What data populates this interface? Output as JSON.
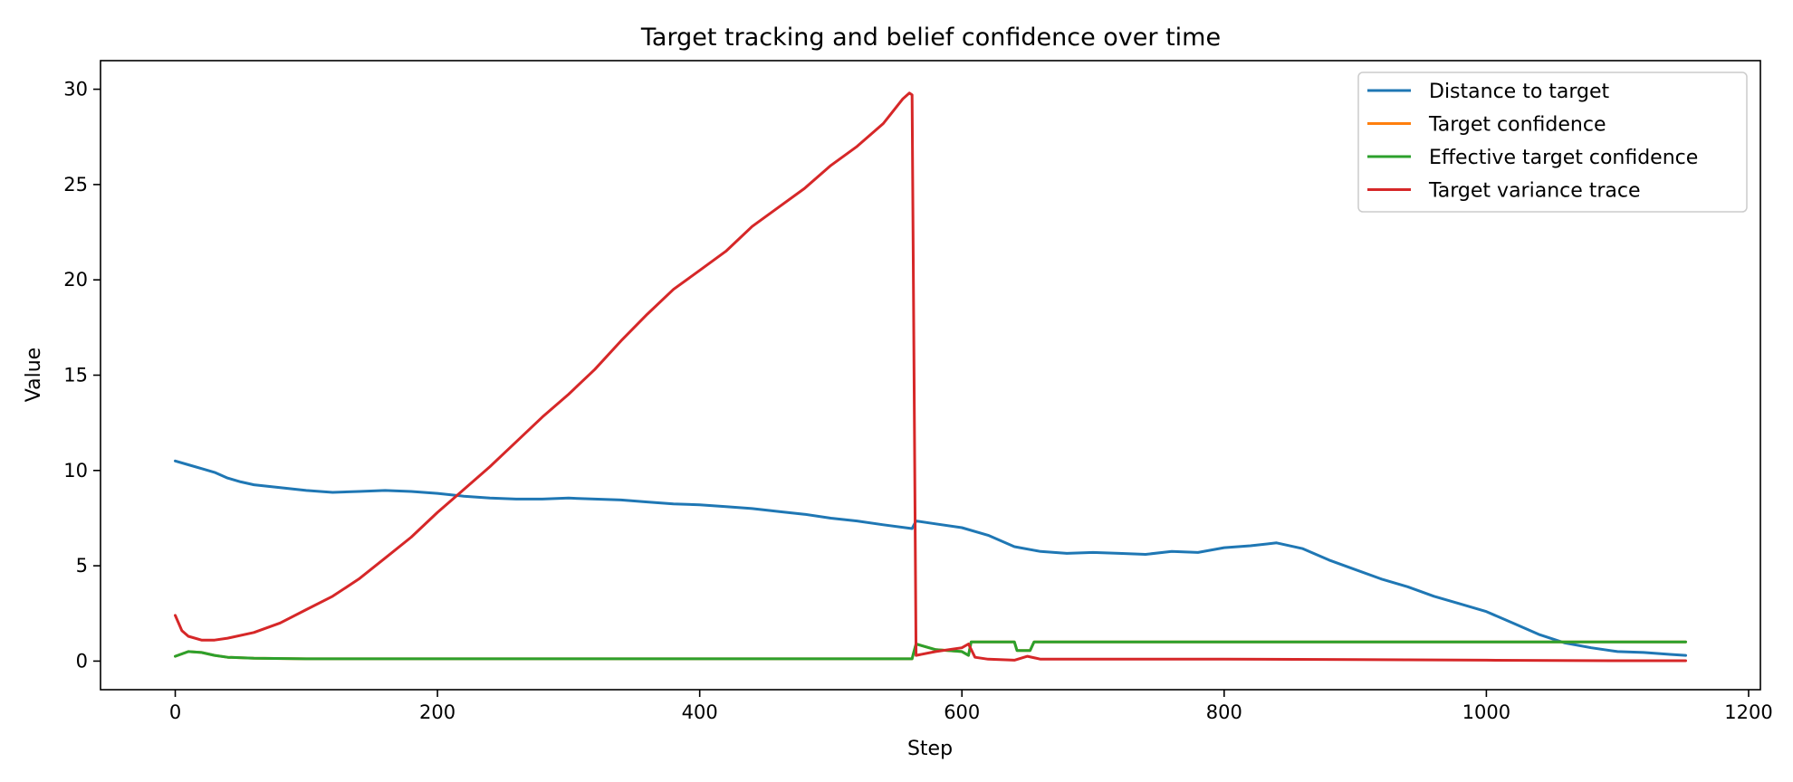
{
  "chart_data": {
    "type": "line",
    "title": "Target tracking and belief confidence over time",
    "xlabel": "Step",
    "ylabel": "Value",
    "xlim": [
      -57,
      1209
    ],
    "ylim": [
      -1.5,
      31.5
    ],
    "xticks": [
      0,
      200,
      400,
      600,
      800,
      1000,
      1200
    ],
    "yticks": [
      0,
      5,
      10,
      15,
      20,
      25,
      30
    ],
    "grid": false,
    "legend_position": "top-right",
    "series": [
      {
        "name": "Distance to target",
        "color": "#1f77b4",
        "x": [
          0,
          10,
          20,
          30,
          40,
          50,
          60,
          80,
          100,
          120,
          140,
          160,
          180,
          200,
          220,
          240,
          260,
          280,
          300,
          320,
          340,
          360,
          380,
          400,
          420,
          440,
          460,
          480,
          500,
          520,
          540,
          562,
          565,
          580,
          600,
          620,
          640,
          660,
          680,
          700,
          720,
          740,
          760,
          780,
          800,
          820,
          840,
          860,
          880,
          900,
          920,
          940,
          960,
          980,
          1000,
          1020,
          1040,
          1060,
          1080,
          1100,
          1120,
          1140,
          1152
        ],
        "y": [
          10.5,
          10.3,
          10.1,
          9.9,
          9.6,
          9.4,
          9.25,
          9.1,
          8.95,
          8.85,
          8.9,
          8.95,
          8.9,
          8.8,
          8.65,
          8.55,
          8.5,
          8.5,
          8.55,
          8.5,
          8.45,
          8.35,
          8.25,
          8.2,
          8.1,
          8.0,
          7.85,
          7.7,
          7.5,
          7.35,
          7.15,
          6.95,
          7.35,
          7.2,
          7.0,
          6.6,
          6.0,
          5.75,
          5.65,
          5.7,
          5.65,
          5.6,
          5.75,
          5.7,
          5.95,
          6.05,
          6.2,
          5.9,
          5.3,
          4.8,
          4.3,
          3.9,
          3.4,
          3.0,
          2.6,
          2.0,
          1.4,
          0.95,
          0.7,
          0.5,
          0.45,
          0.35,
          0.3
        ]
      },
      {
        "name": "Target confidence",
        "color": "#ff7f0e",
        "x": [
          0,
          10,
          20,
          30,
          40,
          60,
          100,
          200,
          300,
          400,
          500,
          562,
          563,
          565,
          580,
          600,
          605,
          607,
          640,
          642,
          652,
          655,
          700,
          800,
          900,
          1000,
          1100,
          1152
        ],
        "y": [
          0.25,
          0.5,
          0.45,
          0.3,
          0.2,
          0.15,
          0.12,
          0.12,
          0.12,
          0.12,
          0.12,
          0.12,
          0.4,
          0.9,
          0.6,
          0.5,
          0.3,
          1.0,
          1.0,
          0.55,
          0.55,
          1.0,
          1.0,
          1.0,
          1.0,
          1.0,
          1.0,
          1.0
        ]
      },
      {
        "name": "Effective target confidence",
        "color": "#2ca02c",
        "x": [
          0,
          10,
          20,
          30,
          40,
          60,
          100,
          200,
          300,
          400,
          500,
          562,
          563,
          565,
          580,
          600,
          605,
          607,
          640,
          642,
          652,
          655,
          700,
          800,
          900,
          1000,
          1100,
          1152
        ],
        "y": [
          0.25,
          0.5,
          0.45,
          0.3,
          0.2,
          0.15,
          0.12,
          0.12,
          0.12,
          0.12,
          0.12,
          0.12,
          0.4,
          0.9,
          0.6,
          0.5,
          0.3,
          1.0,
          1.0,
          0.55,
          0.55,
          1.0,
          1.0,
          1.0,
          1.0,
          1.0,
          1.0,
          1.0
        ]
      },
      {
        "name": "Target variance trace",
        "color": "#d62728",
        "x": [
          0,
          5,
          10,
          20,
          30,
          40,
          60,
          80,
          100,
          120,
          140,
          160,
          180,
          200,
          220,
          240,
          260,
          280,
          300,
          320,
          340,
          360,
          380,
          400,
          420,
          440,
          460,
          480,
          500,
          520,
          540,
          555,
          560,
          562,
          565,
          580,
          600,
          605,
          610,
          620,
          640,
          650,
          660,
          700,
          800,
          900,
          1000,
          1100,
          1152
        ],
        "y": [
          2.4,
          1.6,
          1.3,
          1.1,
          1.1,
          1.2,
          1.5,
          2.0,
          2.7,
          3.4,
          4.3,
          5.4,
          6.5,
          7.8,
          9.0,
          10.2,
          11.5,
          12.8,
          14.0,
          15.3,
          16.8,
          18.2,
          19.5,
          20.5,
          21.5,
          22.8,
          23.8,
          24.8,
          26.0,
          27.0,
          28.2,
          29.5,
          29.8,
          29.7,
          0.3,
          0.5,
          0.7,
          0.9,
          0.2,
          0.1,
          0.05,
          0.25,
          0.1,
          0.1,
          0.1,
          0.08,
          0.05,
          0.02,
          0.02
        ]
      }
    ]
  }
}
